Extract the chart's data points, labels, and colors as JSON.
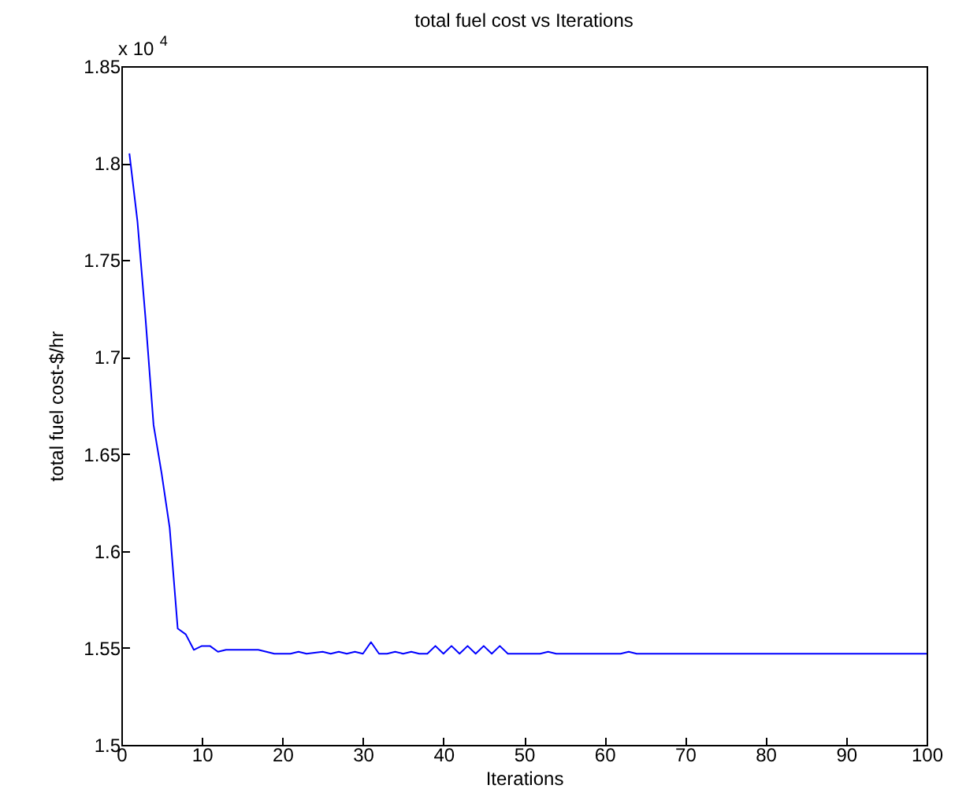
{
  "chart_data": {
    "type": "line",
    "title": "total fuel cost vs Iterations",
    "xlabel": "Iterations",
    "ylabel": "total fuel cost-$/hr",
    "annotations": [
      "x 10$^{4}$"
    ],
    "x": [
      1,
      2,
      3,
      4,
      5,
      6,
      7,
      8,
      9,
      10,
      11,
      12,
      13,
      14,
      15,
      16,
      17,
      18,
      19,
      21,
      22,
      23,
      25,
      26,
      27,
      28,
      29,
      30,
      31,
      32,
      33,
      34,
      35,
      36,
      37,
      38,
      39,
      40,
      41,
      42,
      43,
      44,
      45,
      46,
      47,
      48,
      52,
      53,
      54,
      62,
      63,
      64,
      66,
      100
    ],
    "series": [
      {
        "color": "#0000ff",
        "values": [
          1.805,
          1.77,
          1.72,
          1.665,
          1.64,
          1.612,
          1.56,
          1.557,
          1.549,
          1.551,
          1.551,
          1.548,
          1.549,
          1.549,
          1.549,
          1.549,
          1.549,
          1.548,
          1.547,
          1.547,
          1.548,
          1.547,
          1.548,
          1.547,
          1.548,
          1.547,
          1.548,
          1.547,
          1.553,
          1.547,
          1.547,
          1.548,
          1.547,
          1.548,
          1.547,
          1.547,
          1.551,
          1.547,
          1.551,
          1.547,
          1.551,
          1.547,
          1.551,
          1.547,
          1.551,
          1.547,
          1.547,
          1.548,
          1.547,
          1.547,
          1.548,
          1.547,
          1.547,
          1.547
        ]
      }
    ],
    "xlim": [
      0,
      100
    ],
    "xticks": [
      0,
      10,
      20,
      30,
      40,
      50,
      60,
      70,
      80,
      90,
      100
    ],
    "ylim": [
      1.5,
      1.85
    ],
    "yticks": [
      1.5,
      1.55,
      1.6,
      1.65,
      1.7,
      1.75,
      1.8,
      1.85
    ],
    "grid": false,
    "marker": "none",
    "line_style": "solid"
  }
}
